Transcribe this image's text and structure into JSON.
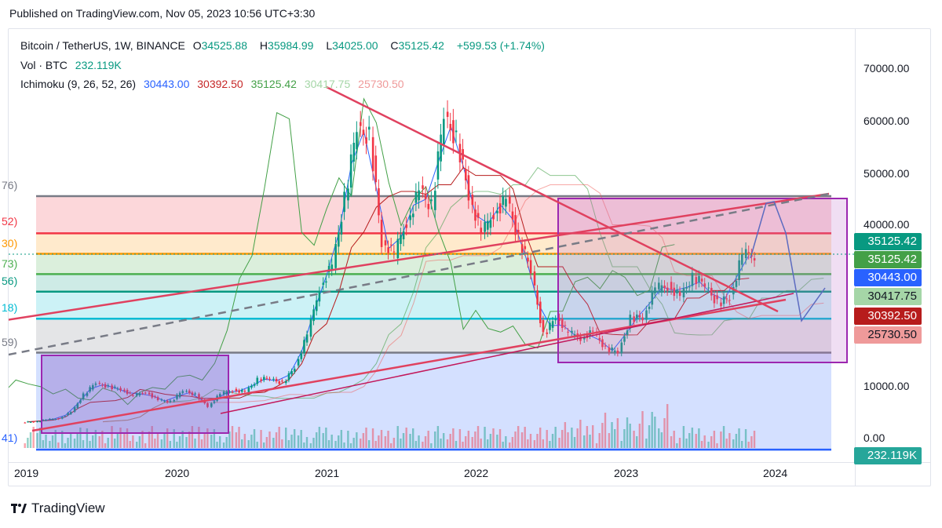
{
  "published": "Published on TradingView.com, Nov 05, 2023 10:56 UTC+3:30",
  "legend": {
    "symbol": "Bitcoin / TetherUS, 1W, BINANCE",
    "o_label": "O",
    "o": "34525.88",
    "h_label": "H",
    "h": "35984.99",
    "l_label": "L",
    "l": "34025.00",
    "c_label": "C",
    "c": "35125.42",
    "change": "+599.53 (+1.74%)",
    "vol_label": "Vol · BTC",
    "vol": "232.119K",
    "ichimoku_label": "Ichimoku (9, 26, 52, 26)",
    "ichimoku_values": [
      "30443.00",
      "30392.50",
      "35125.42",
      "30417.75",
      "25730.50"
    ]
  },
  "price_axis": [
    "70000.00",
    "60000.00",
    "50000.00",
    "40000.00",
    "10000.00",
    "0.00"
  ],
  "price_labels": [
    {
      "text": "35125.42",
      "bg": "#089981",
      "fg": "#ffffff"
    },
    {
      "text": "35125.42",
      "bg": "#43a047",
      "fg": "#ffffff"
    },
    {
      "text": "30443.00",
      "bg": "#2962ff",
      "fg": "#ffffff"
    },
    {
      "text": "30417.75",
      "bg": "#a5d6a7",
      "fg": "#131722"
    },
    {
      "text": "30392.50",
      "bg": "#b71c1c",
      "fg": "#ffffff"
    },
    {
      "text": "25730.50",
      "bg": "#ef9a9a",
      "fg": "#131722"
    },
    {
      "text": "232.119K",
      "bg": "#26a69a",
      "fg": "#ffffff"
    }
  ],
  "fib_labels": [
    "76)",
    "52)",
    "30)",
    "73)",
    "56)",
    "18)",
    "59)",
    "41)"
  ],
  "footer": {
    "brand": "TradingView"
  },
  "chart_data": {
    "type": "candlestick",
    "title": "Bitcoin / TetherUS, 1W, BINANCE",
    "interval_note": "monthly approximation of weekly candles",
    "x_start": "2019-01",
    "x_ticks": [
      "2019",
      "2020",
      "2021",
      "2022",
      "2023",
      "2024"
    ],
    "ylim": [
      0,
      75000
    ],
    "closes": [
      3450,
      3800,
      4100,
      5300,
      8500,
      10800,
      10100,
      9600,
      8300,
      9150,
      7550,
      7200,
      9350,
      8600,
      6400,
      8600,
      9450,
      9150,
      11350,
      11650,
      10780,
      13800,
      19700,
      29000,
      33100,
      45200,
      58800,
      57700,
      37300,
      35000,
      41500,
      47100,
      43800,
      61300,
      57000,
      46300,
      38500,
      43200,
      45500,
      37700,
      31800,
      19900,
      23300,
      20050,
      19400,
      20500,
      17150,
      16550,
      23100,
      23150,
      28450,
      29250,
      27200,
      30450,
      29250,
      25950,
      26950,
      34650,
      35125
    ],
    "fib_levels": [
      46000,
      39000,
      35125,
      31300,
      28000,
      22900,
      16500,
      -1800
    ],
    "colors": {
      "up": "#089981",
      "down": "#f23645"
    }
  }
}
